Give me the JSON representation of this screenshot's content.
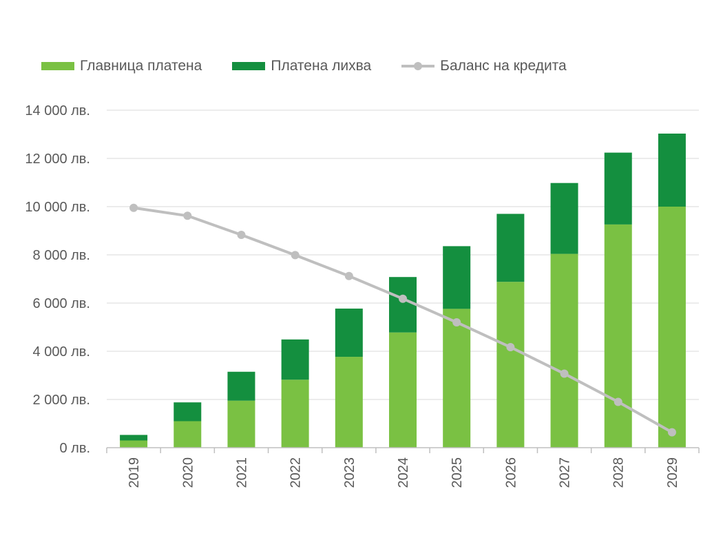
{
  "chart_data": {
    "type": "bar",
    "stacked": true,
    "categories": [
      "2019",
      "2020",
      "2021",
      "2022",
      "2023",
      "2024",
      "2025",
      "2026",
      "2027",
      "2028",
      "2029"
    ],
    "series": [
      {
        "name": "Главница платена",
        "type": "bar",
        "color": "#7ac143",
        "values": [
          300,
          1100,
          1950,
          2820,
          3770,
          4780,
          5760,
          6880,
          8040,
          9260,
          10000
        ]
      },
      {
        "name": "Платена лихва",
        "type": "bar",
        "color": "#148f3f",
        "values": [
          230,
          780,
          1200,
          1670,
          2000,
          2300,
          2600,
          2820,
          2940,
          2980,
          3030
        ]
      },
      {
        "name": "Баланс на кредита",
        "type": "line",
        "color": "#bfbfbf",
        "values": [
          9950,
          9620,
          8830,
          7990,
          7120,
          6180,
          5200,
          4170,
          3070,
          1900,
          640
        ]
      }
    ],
    "ylim": [
      0,
      14000
    ],
    "yticks": [
      0,
      2000,
      4000,
      6000,
      8000,
      10000,
      12000,
      14000
    ],
    "ytick_labels": [
      "0 лв.",
      "2 000 лв.",
      "4 000 лв.",
      "6 000 лв.",
      "8 000 лв.",
      "10 000 лв.",
      "12 000 лв.",
      "14 000 лв."
    ],
    "title": "",
    "xlabel": "",
    "ylabel": "",
    "grid": true,
    "legend_position": "top"
  }
}
